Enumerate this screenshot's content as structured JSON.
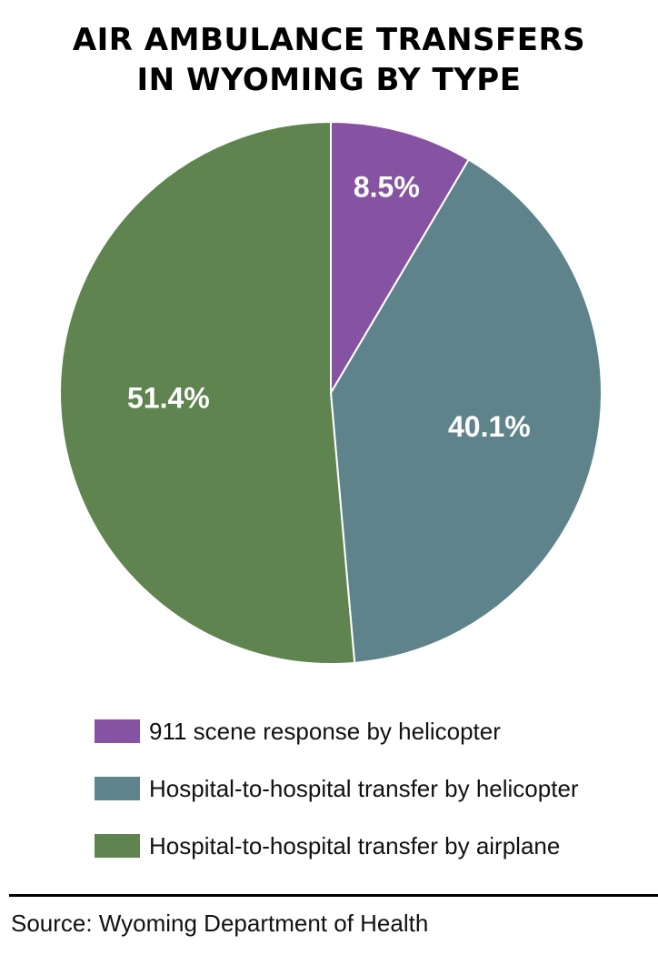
{
  "chart_data": {
    "type": "pie",
    "title_lines": [
      "AIR AMBULANCE TRANSFERS",
      "IN WYOMING BY TYPE"
    ],
    "slices": [
      {
        "label": "911 scene response by helicopter",
        "value": 8.5,
        "display": "8.5%",
        "color": "#8653a2"
      },
      {
        "label": "Hospital-to-hospital transfer by helicopter",
        "value": 40.1,
        "display": "40.1%",
        "color": "#5e838b"
      },
      {
        "label": "Hospital-to-hospital transfer by airplane",
        "value": 51.4,
        "display": "51.4%",
        "color": "#5f8450"
      }
    ],
    "source": "Source: Wyoming Department of Health"
  }
}
